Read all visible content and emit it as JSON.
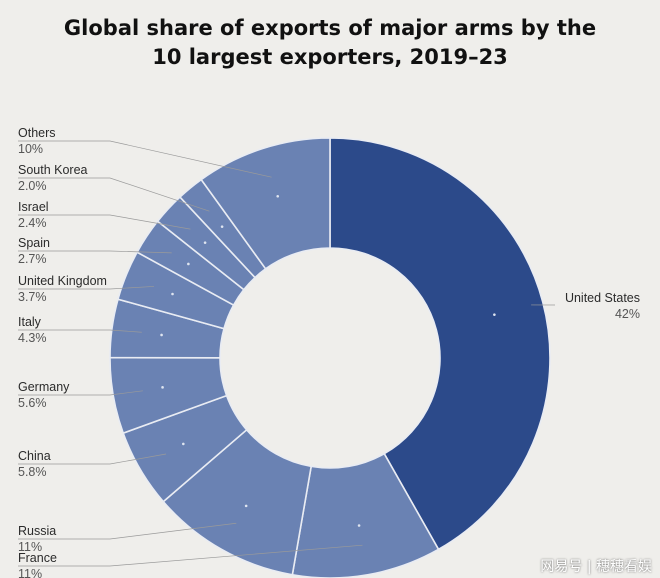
{
  "title_line1": "Global share of exports of major arms by the",
  "title_line2": "10 largest exporters, 2019–23",
  "watermark": "网易号 | 穗穗看娱",
  "colors": {
    "primary": "#2c4a8a",
    "secondary": "#6a82b3",
    "background": "#efeeeb"
  },
  "chart_data": {
    "type": "pie",
    "donut": true,
    "title": "Global share of exports of major arms by the 10 largest exporters, 2019–23",
    "unit": "%",
    "slices": [
      {
        "label": "United States",
        "value": 42,
        "display": "42%"
      },
      {
        "label": "France",
        "value": 11,
        "display": "11%"
      },
      {
        "label": "Russia",
        "value": 11,
        "display": "11%"
      },
      {
        "label": "China",
        "value": 5.8,
        "display": "5.8%"
      },
      {
        "label": "Germany",
        "value": 5.6,
        "display": "5.6%"
      },
      {
        "label": "Italy",
        "value": 4.3,
        "display": "4.3%"
      },
      {
        "label": "United Kingdom",
        "value": 3.7,
        "display": "3.7%"
      },
      {
        "label": "Spain",
        "value": 2.7,
        "display": "2.7%"
      },
      {
        "label": "Israel",
        "value": 2.4,
        "display": "2.4%"
      },
      {
        "label": "South Korea",
        "value": 2.0,
        "display": "2.0%"
      },
      {
        "label": "Others",
        "value": 10,
        "display": "10%"
      }
    ]
  }
}
